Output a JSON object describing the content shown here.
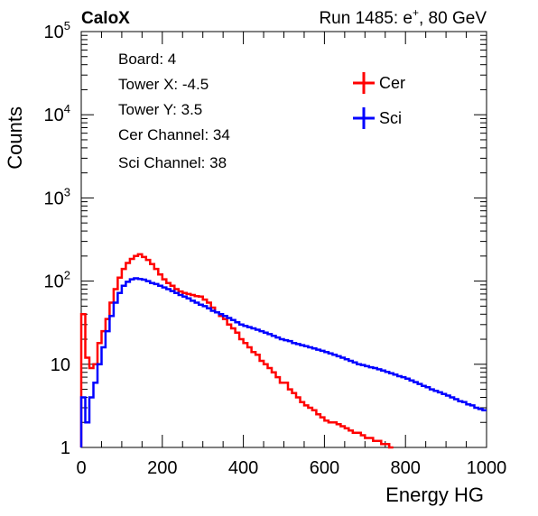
{
  "header": {
    "experiment": "CaloX",
    "run_prefix": "Run 1485: e",
    "run_sup": "+",
    "run_suffix": ", 80 GeV"
  },
  "info_lines": [
    "Board: 4",
    "Tower X: -4.5",
    "Tower Y: 3.5",
    "Cer Channel: 34",
    "Sci Channel: 38"
  ],
  "chart_data": {
    "type": "line",
    "xlabel": "Energy HG",
    "ylabel": "Counts",
    "xlim": [
      0,
      1000
    ],
    "ylim": [
      1,
      100000
    ],
    "yscale": "log",
    "x_ticks": [
      "0",
      "200",
      "400",
      "600",
      "800",
      "1000"
    ],
    "y_ticks": [
      {
        "value": 1,
        "base": "1",
        "exp": ""
      },
      {
        "value": 10,
        "base": "10",
        "exp": ""
      },
      {
        "value": 100,
        "base": "10",
        "exp": "2"
      },
      {
        "value": 1000,
        "base": "10",
        "exp": "3"
      },
      {
        "value": 10000,
        "base": "10",
        "exp": "4"
      },
      {
        "value": 100000,
        "base": "10",
        "exp": "5"
      }
    ],
    "legend": {
      "position": "top-right"
    },
    "series": [
      {
        "name": "Cer",
        "color": "#ff0000",
        "points": [
          [
            5,
            40
          ],
          [
            15,
            12
          ],
          [
            25,
            9
          ],
          [
            35,
            10
          ],
          [
            45,
            18
          ],
          [
            55,
            25
          ],
          [
            65,
            35
          ],
          [
            75,
            55
          ],
          [
            85,
            80
          ],
          [
            95,
            110
          ],
          [
            105,
            140
          ],
          [
            115,
            165
          ],
          [
            125,
            185
          ],
          [
            135,
            200
          ],
          [
            145,
            210
          ],
          [
            155,
            195
          ],
          [
            165,
            180
          ],
          [
            175,
            160
          ],
          [
            185,
            140
          ],
          [
            195,
            120
          ],
          [
            205,
            105
          ],
          [
            215,
            95
          ],
          [
            225,
            88
          ],
          [
            235,
            80
          ],
          [
            245,
            75
          ],
          [
            255,
            72
          ],
          [
            265,
            70
          ],
          [
            275,
            68
          ],
          [
            285,
            66
          ],
          [
            295,
            65
          ],
          [
            305,
            60
          ],
          [
            315,
            55
          ],
          [
            325,
            48
          ],
          [
            335,
            42
          ],
          [
            345,
            38
          ],
          [
            355,
            35
          ],
          [
            365,
            30
          ],
          [
            375,
            27
          ],
          [
            385,
            24
          ],
          [
            395,
            20
          ],
          [
            405,
            18
          ],
          [
            415,
            16
          ],
          [
            425,
            14
          ],
          [
            435,
            13
          ],
          [
            445,
            11
          ],
          [
            455,
            10
          ],
          [
            465,
            9
          ],
          [
            475,
            8
          ],
          [
            485,
            7
          ],
          [
            495,
            6
          ],
          [
            505,
            6
          ],
          [
            515,
            5
          ],
          [
            525,
            4.5
          ],
          [
            535,
            4
          ],
          [
            545,
            3.5
          ],
          [
            555,
            3.2
          ],
          [
            565,
            3
          ],
          [
            575,
            2.8
          ],
          [
            585,
            2.5
          ],
          [
            595,
            2.3
          ],
          [
            605,
            2.1
          ],
          [
            615,
            2
          ],
          [
            625,
            2
          ],
          [
            635,
            1.9
          ],
          [
            645,
            1.8
          ],
          [
            655,
            1.7
          ],
          [
            665,
            1.6
          ],
          [
            675,
            1.5
          ],
          [
            685,
            1.5
          ],
          [
            695,
            1.4
          ],
          [
            705,
            1.3
          ],
          [
            715,
            1.3
          ],
          [
            725,
            1.2
          ],
          [
            735,
            1.2
          ],
          [
            745,
            1.1
          ],
          [
            755,
            1.1
          ],
          [
            765,
            1
          ]
        ]
      },
      {
        "name": "Sci",
        "color": "#0000ff",
        "points": [
          [
            5,
            4
          ],
          [
            15,
            2
          ],
          [
            25,
            4
          ],
          [
            35,
            6
          ],
          [
            45,
            10
          ],
          [
            55,
            16
          ],
          [
            65,
            25
          ],
          [
            75,
            38
          ],
          [
            85,
            55
          ],
          [
            95,
            72
          ],
          [
            105,
            88
          ],
          [
            115,
            98
          ],
          [
            125,
            105
          ],
          [
            135,
            108
          ],
          [
            145,
            106
          ],
          [
            155,
            104
          ],
          [
            165,
            100
          ],
          [
            175,
            95
          ],
          [
            185,
            92
          ],
          [
            195,
            88
          ],
          [
            205,
            84
          ],
          [
            215,
            80
          ],
          [
            225,
            76
          ],
          [
            235,
            72
          ],
          [
            245,
            68
          ],
          [
            255,
            65
          ],
          [
            265,
            62
          ],
          [
            275,
            58
          ],
          [
            285,
            55
          ],
          [
            295,
            52
          ],
          [
            305,
            50
          ],
          [
            315,
            47
          ],
          [
            325,
            44
          ],
          [
            335,
            42
          ],
          [
            345,
            40
          ],
          [
            355,
            38
          ],
          [
            365,
            36
          ],
          [
            375,
            34
          ],
          [
            385,
            32
          ],
          [
            395,
            30
          ],
          [
            405,
            29
          ],
          [
            415,
            28
          ],
          [
            425,
            27
          ],
          [
            435,
            26
          ],
          [
            445,
            25
          ],
          [
            455,
            24
          ],
          [
            465,
            23
          ],
          [
            475,
            22
          ],
          [
            485,
            21
          ],
          [
            495,
            20
          ],
          [
            505,
            19.5
          ],
          [
            515,
            19
          ],
          [
            525,
            18
          ],
          [
            535,
            17.5
          ],
          [
            545,
            17
          ],
          [
            555,
            16.5
          ],
          [
            565,
            16
          ],
          [
            575,
            15.5
          ],
          [
            585,
            15
          ],
          [
            595,
            14.5
          ],
          [
            605,
            14
          ],
          [
            615,
            13.5
          ],
          [
            625,
            13
          ],
          [
            635,
            12.5
          ],
          [
            645,
            12
          ],
          [
            655,
            11.5
          ],
          [
            665,
            11
          ],
          [
            675,
            10.5
          ],
          [
            685,
            10
          ],
          [
            695,
            9.8
          ],
          [
            705,
            9.5
          ],
          [
            715,
            9.2
          ],
          [
            725,
            9
          ],
          [
            735,
            8.7
          ],
          [
            745,
            8.4
          ],
          [
            755,
            8.1
          ],
          [
            765,
            7.8
          ],
          [
            775,
            7.5
          ],
          [
            785,
            7.2
          ],
          [
            795,
            7
          ],
          [
            805,
            6.7
          ],
          [
            815,
            6.4
          ],
          [
            825,
            6.1
          ],
          [
            835,
            5.8
          ],
          [
            845,
            5.5
          ],
          [
            855,
            5.3
          ],
          [
            865,
            5
          ],
          [
            875,
            4.8
          ],
          [
            885,
            4.6
          ],
          [
            895,
            4.4
          ],
          [
            905,
            4.2
          ],
          [
            915,
            4
          ],
          [
            925,
            3.8
          ],
          [
            935,
            3.6
          ],
          [
            945,
            3.5
          ],
          [
            955,
            3.3
          ],
          [
            965,
            3.2
          ],
          [
            975,
            3
          ],
          [
            985,
            2.9
          ],
          [
            995,
            2.8
          ]
        ]
      }
    ]
  }
}
